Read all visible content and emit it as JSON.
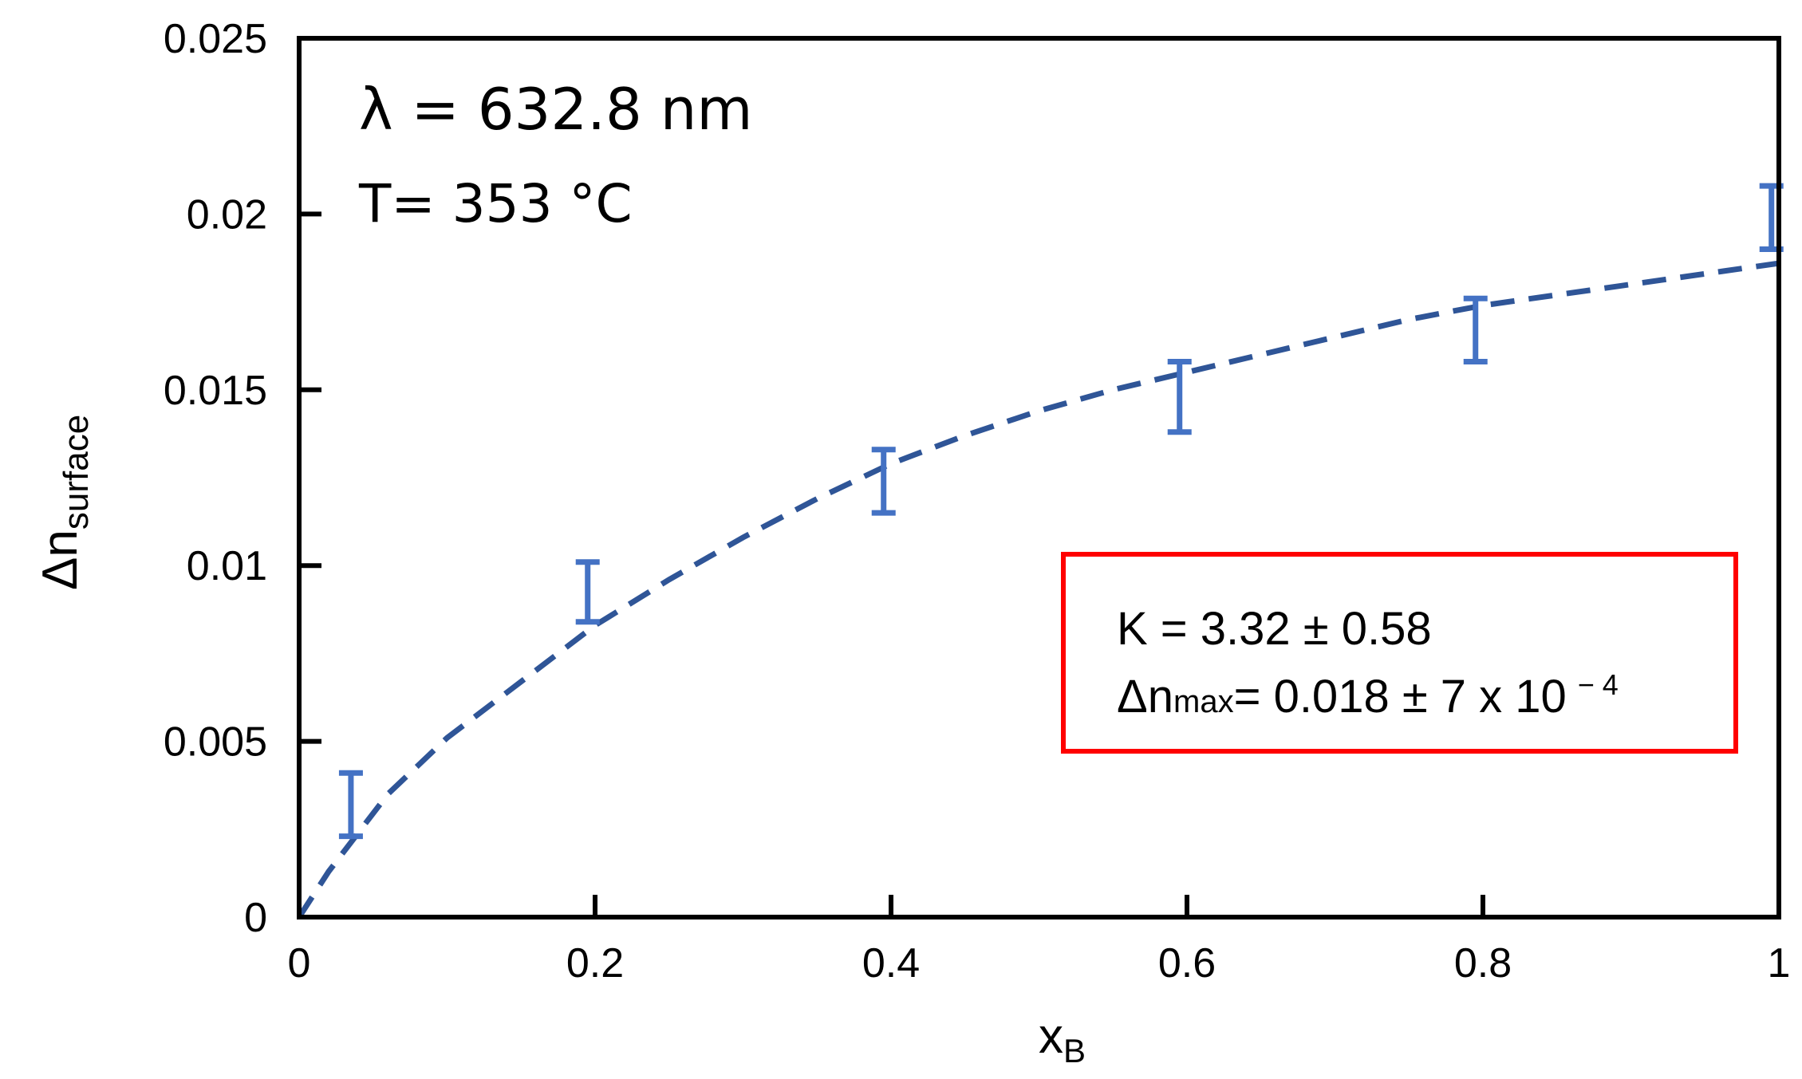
{
  "chart_data": {
    "type": "scatter",
    "xlabel": "x",
    "xlabel_sub": "B",
    "ylabel": "Δn",
    "ylabel_sub": "surface",
    "xlim": [
      0,
      1
    ],
    "ylim": [
      0,
      0.025
    ],
    "x_ticks": [
      0,
      0.2,
      0.4,
      0.6,
      0.8,
      1
    ],
    "x_tick_labels": [
      "0",
      "0.2",
      "0.4",
      "0.6",
      "0.8",
      "1"
    ],
    "y_ticks": [
      0,
      0.005,
      0.01,
      0.015,
      0.02,
      0.025
    ],
    "y_tick_labels": [
      "0",
      "0.005",
      "0.01",
      "0.015",
      "0.02",
      "0.025"
    ],
    "grid": false,
    "series": [
      {
        "kind": "errorbar",
        "color": "#4472C4",
        "x": [
          0.035,
          0.195,
          0.395,
          0.595,
          0.795,
          0.995
        ],
        "y_low": [
          0.0023,
          0.0084,
          0.0115,
          0.0138,
          0.0158,
          0.019
        ],
        "y_high": [
          0.0041,
          0.0101,
          0.0133,
          0.0158,
          0.0176,
          0.0208
        ]
      },
      {
        "kind": "fit",
        "style": "dashed",
        "color": "#2F5597",
        "x": [
          0,
          0.02,
          0.04,
          0.06,
          0.08,
          0.1,
          0.15,
          0.2,
          0.25,
          0.3,
          0.35,
          0.4,
          0.45,
          0.5,
          0.55,
          0.6,
          0.65,
          0.7,
          0.75,
          0.8,
          0.85,
          0.9,
          0.95,
          1.0
        ],
        "y": [
          0,
          0.0013,
          0.0024,
          0.0035,
          0.0043,
          0.0051,
          0.0067,
          0.0083,
          0.0096,
          0.0108,
          0.0119,
          0.0129,
          0.0137,
          0.0144,
          0.015,
          0.0155,
          0.016,
          0.0165,
          0.017,
          0.0174,
          0.0177,
          0.018,
          0.0183,
          0.0186
        ]
      }
    ],
    "annotations": {
      "wavelength": "λ = 632.8 nm",
      "temperature": "T= 353 °C",
      "fit_box": {
        "border_color": "#FF0000",
        "line1": "K = 3.32 ± 0.58",
        "line2_prefix": "Δn",
        "line2_sub": "max",
        "line2_main": "= 0.018 ± 7 x 10",
        "line2_sup": "− 4"
      }
    }
  }
}
